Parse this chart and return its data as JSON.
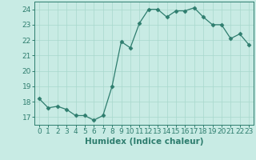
{
  "x": [
    0,
    1,
    2,
    3,
    4,
    5,
    6,
    7,
    8,
    9,
    10,
    11,
    12,
    13,
    14,
    15,
    16,
    17,
    18,
    19,
    20,
    21,
    22,
    23
  ],
  "y": [
    18.2,
    17.6,
    17.7,
    17.5,
    17.1,
    17.1,
    16.8,
    17.1,
    19.0,
    21.9,
    21.5,
    23.1,
    24.0,
    24.0,
    23.5,
    23.9,
    23.9,
    24.1,
    23.5,
    23.0,
    23.0,
    22.1,
    22.4,
    21.7
  ],
  "xlabel": "Humidex (Indice chaleur)",
  "xlim": [
    -0.5,
    23.5
  ],
  "ylim": [
    16.5,
    24.5
  ],
  "yticks": [
    17,
    18,
    19,
    20,
    21,
    22,
    23,
    24
  ],
  "xticks": [
    0,
    1,
    2,
    3,
    4,
    5,
    6,
    7,
    8,
    9,
    10,
    11,
    12,
    13,
    14,
    15,
    16,
    17,
    18,
    19,
    20,
    21,
    22,
    23
  ],
  "line_color": "#2e7d6e",
  "marker": "D",
  "marker_size": 2.5,
  "bg_color": "#c8ebe4",
  "grid_color": "#a8d8cc",
  "tick_label_fontsize": 6.5,
  "xlabel_fontsize": 7.5
}
